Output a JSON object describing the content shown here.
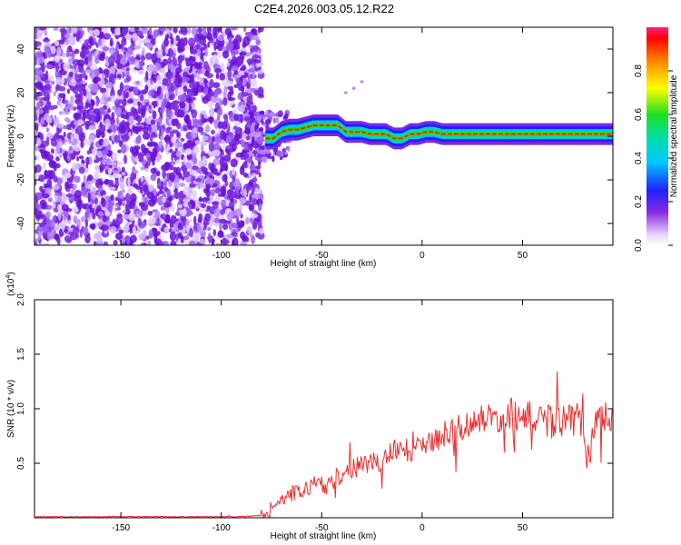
{
  "title": "C2E4.2026.003.05.12.R22",
  "chart_data": [
    {
      "type": "heatmap",
      "xlabel": "Height of straight line (km)",
      "ylabel": "Frequency (Hz)",
      "xlim": [
        -193,
        95
      ],
      "ylim": [
        -50,
        50
      ],
      "x_ticks": [
        -150,
        -100,
        -50,
        0,
        50
      ],
      "y_ticks": [
        -40,
        -20,
        0,
        20,
        40
      ],
      "colorbar": {
        "label": "Normalized spectral amplitude",
        "range": [
          0,
          1
        ],
        "ticks": [
          0.0,
          0.2,
          0.4,
          0.6,
          0.8
        ]
      },
      "noise_region": {
        "x_from": -193,
        "x_to": -80
      },
      "ridge": {
        "x": [
          -78,
          -74,
          -70,
          -66,
          -62,
          -58,
          -54,
          -50,
          -46,
          -42,
          -38,
          -34,
          -30,
          -26,
          -22,
          -18,
          -14,
          -10,
          -6,
          -2,
          2,
          6,
          10,
          20,
          30,
          40,
          50,
          60,
          70,
          80,
          90,
          95
        ],
        "y": [
          -1,
          -1,
          2,
          3,
          3,
          4,
          5,
          5,
          5,
          5,
          2,
          2,
          2,
          1,
          1,
          1,
          -1,
          -1,
          1,
          1,
          2,
          2,
          1,
          1,
          1,
          1,
          1,
          1,
          1,
          1,
          1,
          1
        ]
      },
      "stray_points": [
        {
          "x": -38,
          "y": 20
        },
        {
          "x": -34,
          "y": 22
        },
        {
          "x": -30,
          "y": 25
        }
      ]
    },
    {
      "type": "line",
      "xlabel": "Height of straight line (km)",
      "ylabel": "SNR (10 * v/v)",
      "y_scale_label": "(x10",
      "y_scale_exp": "4",
      "y_scale_close": ")",
      "xlim": [
        -193,
        95
      ],
      "ylim": [
        0,
        2.0
      ],
      "x_ticks": [
        -150,
        -100,
        -50,
        0,
        50
      ],
      "y_ticks": [
        0.5,
        1.0,
        1.5,
        2.0
      ],
      "series": [
        {
          "color": "#e83030",
          "x": [
            -193,
            -180,
            -160,
            -140,
            -120,
            -100,
            -90,
            -80,
            -75,
            -70,
            -65,
            -60,
            -55,
            -52,
            -50,
            -45,
            -40,
            -35,
            -30,
            -25,
            -20,
            -15,
            -10,
            -5,
            0,
            5,
            10,
            15,
            20,
            25,
            30,
            35,
            40,
            45,
            50,
            55,
            60,
            65,
            70,
            75,
            80,
            83,
            86,
            90,
            95
          ],
          "y": [
            0.01,
            0.01,
            0.01,
            0.01,
            0.01,
            0.01,
            0.01,
            0.02,
            0.08,
            0.15,
            0.22,
            0.25,
            0.3,
            0.33,
            0.3,
            0.32,
            0.38,
            0.45,
            0.48,
            0.5,
            0.53,
            0.6,
            0.62,
            0.62,
            0.65,
            0.7,
            0.76,
            0.81,
            0.84,
            0.87,
            0.9,
            0.92,
            0.93,
            0.95,
            0.93,
            0.92,
            0.88,
            0.88,
            0.88,
            0.9,
            0.92,
            0.45,
            0.8,
            0.88,
            0.95
          ]
        }
      ]
    }
  ]
}
